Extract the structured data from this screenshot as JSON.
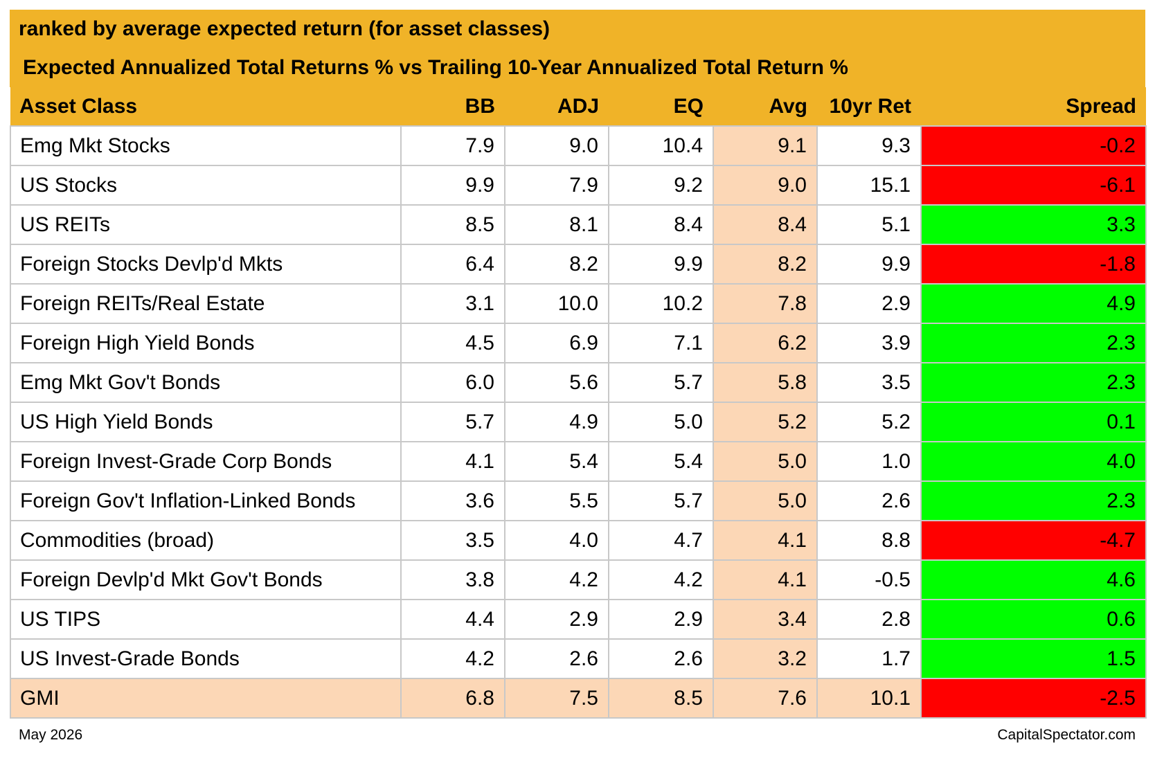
{
  "subtitle": "ranked by average expected return (for asset classes)",
  "title": "Expected Annualized Total Returns % vs Trailing 10-Year Annualized Total Return %",
  "footer": {
    "date": "May 2026",
    "source": "CapitalSpectator.com"
  },
  "colors": {
    "header_bg": "#F0B328",
    "avg_bg": "#FCD7B6",
    "spread_positive": "#00FF00",
    "spread_negative": "#FF0000"
  },
  "chart_data": {
    "type": "table",
    "columns": [
      "Asset Class",
      "BB",
      "ADJ",
      "EQ",
      "Avg",
      "10yr Ret",
      "Spread"
    ],
    "rows": [
      {
        "name": "Emg Mkt Stocks",
        "bb": "7.9",
        "adj": "9.0",
        "eq": "10.4",
        "avg": "9.1",
        "ret10": "9.3",
        "spread": "-0.2"
      },
      {
        "name": "US Stocks",
        "bb": "9.9",
        "adj": "7.9",
        "eq": "9.2",
        "avg": "9.0",
        "ret10": "15.1",
        "spread": "-6.1"
      },
      {
        "name": "US REITs",
        "bb": "8.5",
        "adj": "8.1",
        "eq": "8.4",
        "avg": "8.4",
        "ret10": "5.1",
        "spread": "3.3"
      },
      {
        "name": "Foreign Stocks Devlp'd Mkts",
        "bb": "6.4",
        "adj": "8.2",
        "eq": "9.9",
        "avg": "8.2",
        "ret10": "9.9",
        "spread": "-1.8"
      },
      {
        "name": "Foreign REITs/Real Estate",
        "bb": "3.1",
        "adj": "10.0",
        "eq": "10.2",
        "avg": "7.8",
        "ret10": "2.9",
        "spread": "4.9"
      },
      {
        "name": "Foreign High Yield Bonds",
        "bb": "4.5",
        "adj": "6.9",
        "eq": "7.1",
        "avg": "6.2",
        "ret10": "3.9",
        "spread": "2.3"
      },
      {
        "name": "Emg Mkt Gov't Bonds",
        "bb": "6.0",
        "adj": "5.6",
        "eq": "5.7",
        "avg": "5.8",
        "ret10": "3.5",
        "spread": "2.3"
      },
      {
        "name": "US High Yield Bonds",
        "bb": "5.7",
        "adj": "4.9",
        "eq": "5.0",
        "avg": "5.2",
        "ret10": "5.2",
        "spread": "0.1"
      },
      {
        "name": "Foreign Invest-Grade Corp Bonds",
        "bb": "4.1",
        "adj": "5.4",
        "eq": "5.4",
        "avg": "5.0",
        "ret10": "1.0",
        "spread": "4.0"
      },
      {
        "name": "Foreign Gov't Inflation-Linked Bonds",
        "bb": "3.6",
        "adj": "5.5",
        "eq": "5.7",
        "avg": "5.0",
        "ret10": "2.6",
        "spread": "2.3"
      },
      {
        "name": "Commodities (broad)",
        "bb": "3.5",
        "adj": "4.0",
        "eq": "4.7",
        "avg": "4.1",
        "ret10": "8.8",
        "spread": "-4.7"
      },
      {
        "name": "Foreign Devlp'd Mkt Gov't Bonds",
        "bb": "3.8",
        "adj": "4.2",
        "eq": "4.2",
        "avg": "4.1",
        "ret10": "-0.5",
        "spread": "4.6"
      },
      {
        "name": "US TIPS",
        "bb": "4.4",
        "adj": "2.9",
        "eq": "2.9",
        "avg": "3.4",
        "ret10": "2.8",
        "spread": "0.6"
      },
      {
        "name": "US Invest-Grade Bonds",
        "bb": "4.2",
        "adj": "2.6",
        "eq": "2.6",
        "avg": "3.2",
        "ret10": "1.7",
        "spread": "1.5"
      },
      {
        "name": "GMI",
        "bb": "6.8",
        "adj": "7.5",
        "eq": "8.5",
        "avg": "7.6",
        "ret10": "10.1",
        "spread": "-2.5"
      }
    ]
  }
}
